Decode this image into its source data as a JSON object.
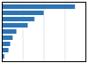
{
  "chart_data": {
    "type": "bar",
    "orientation": "horizontal",
    "categories": [
      null,
      null,
      null,
      null,
      null,
      null,
      null,
      null,
      null
    ],
    "values": [
      17500,
      10000,
      7800,
      6200,
      3500,
      2600,
      2000,
      1600,
      600
    ],
    "color": "#2e75b6",
    "xlim": [
      0,
      20000
    ],
    "xticks": [
      5000,
      10000,
      15000,
      20000
    ],
    "grid": true,
    "tick_labels": false
  }
}
